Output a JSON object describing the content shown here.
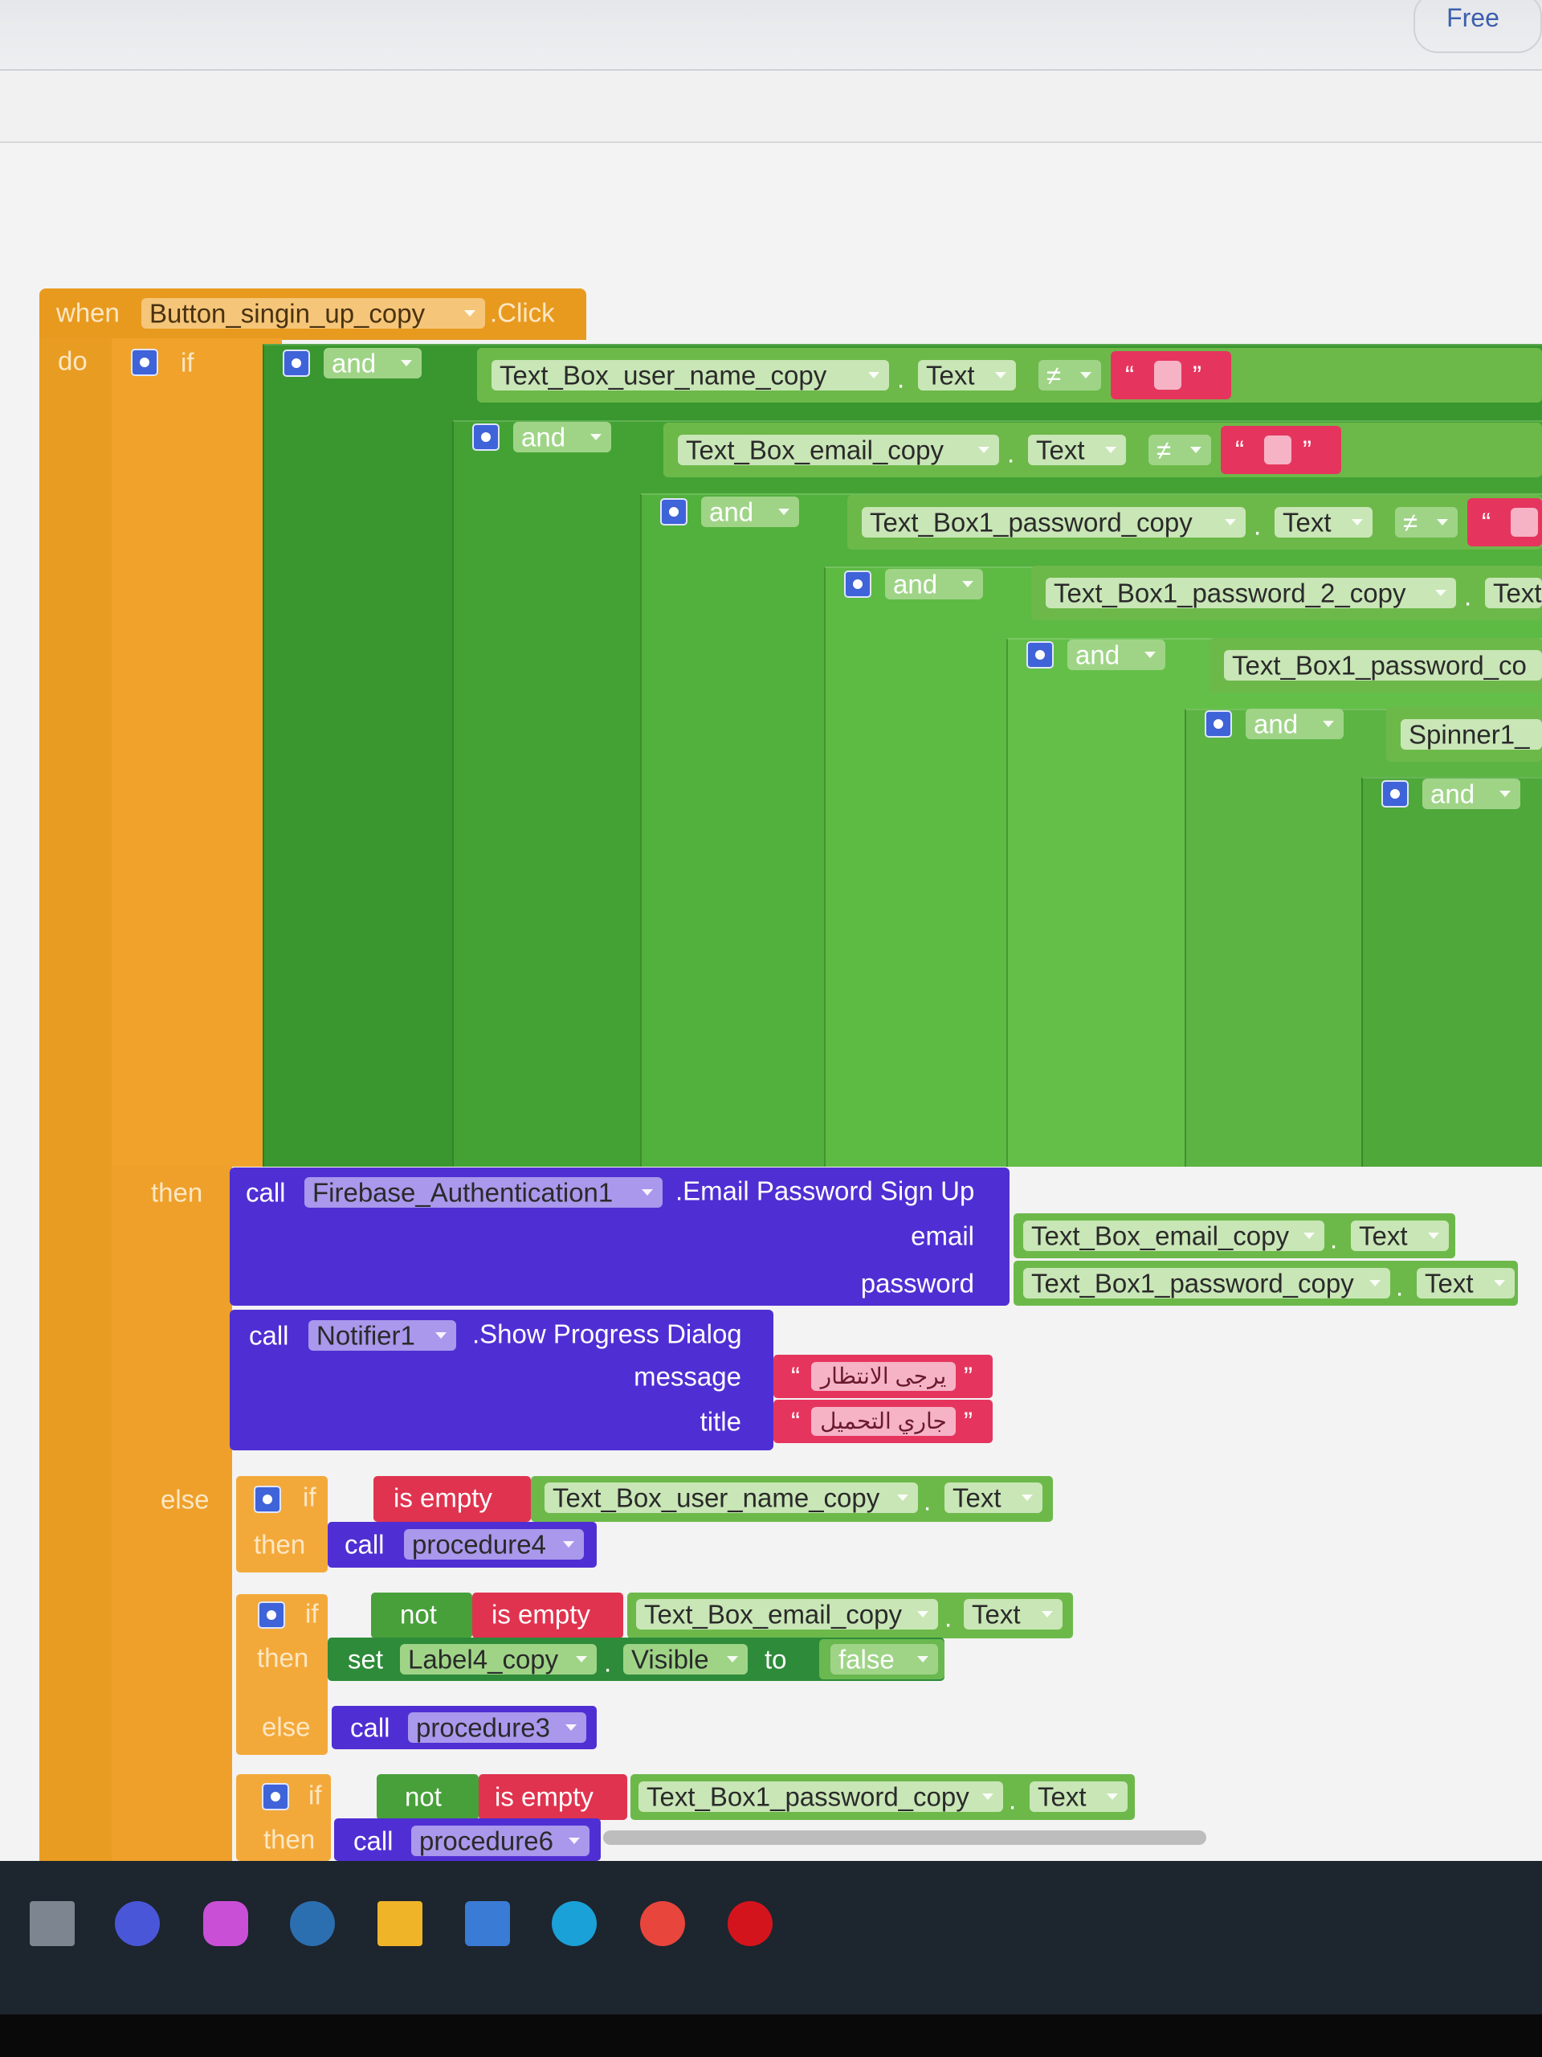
{
  "toolbar": {
    "plan": "Free"
  },
  "punctuation": {
    "dot": ".",
    "open_quote": "“",
    "close_quote": "”"
  },
  "event": {
    "when": "when",
    "component": "Button_singin_up_copy",
    "event": ".Click",
    "do": "do"
  },
  "main_if": {
    "if": "if",
    "then": "then",
    "else": "else"
  },
  "conditions": {
    "ands": [
      "and",
      "and",
      "and",
      "and",
      "and",
      "and",
      "and"
    ],
    "comparisons": [
      {
        "component": "Text_Box_user_name_copy",
        "property": "Text",
        "operator": "≠"
      },
      {
        "component": "Text_Box_email_copy",
        "property": "Text",
        "operator": "≠"
      },
      {
        "component": "Text_Box1_password_copy",
        "property": "Text",
        "operator": "≠"
      },
      {
        "component": "Text_Box1_password_2_copy",
        "property": "Text"
      },
      {
        "component": "Text_Box1_password_co"
      },
      {
        "component": "Spinner1_"
      }
    ]
  },
  "sign_up": {
    "call": "call",
    "component": "Firebase_Authentication1",
    "method": ".Email Password Sign Up",
    "args": [
      {
        "name": "email",
        "component": "Text_Box_email_copy",
        "property": "Text"
      },
      {
        "name": "password",
        "component": "Text_Box1_password_copy",
        "property": "Text"
      }
    ]
  },
  "progress": {
    "call": "call",
    "component": "Notifier1",
    "method": ".Show Progress Dialog",
    "args": [
      {
        "name": "message",
        "value": "يرجى الانتظار"
      },
      {
        "name": "title",
        "value": "جاري التحميل"
      }
    ]
  },
  "else_blocks": [
    {
      "if": "if",
      "test": "is empty",
      "component": "Text_Box_user_name_copy",
      "property": "Text",
      "then": "then",
      "call": "call",
      "procedure": "procedure4"
    },
    {
      "if": "if",
      "not": "not",
      "test": "is empty",
      "component": "Text_Box_email_copy",
      "property": "Text",
      "then": "then",
      "set": "set",
      "target": "Label4_copy",
      "target_property": "Visible",
      "to": "to",
      "value": "false",
      "else": "else",
      "else_call": "call",
      "else_procedure": "procedure3"
    },
    {
      "if": "if",
      "not": "not",
      "test": "is empty",
      "component": "Text_Box1_password_copy",
      "property": "Text",
      "then": "then",
      "call": "call",
      "procedure": "procedure6"
    }
  ]
}
